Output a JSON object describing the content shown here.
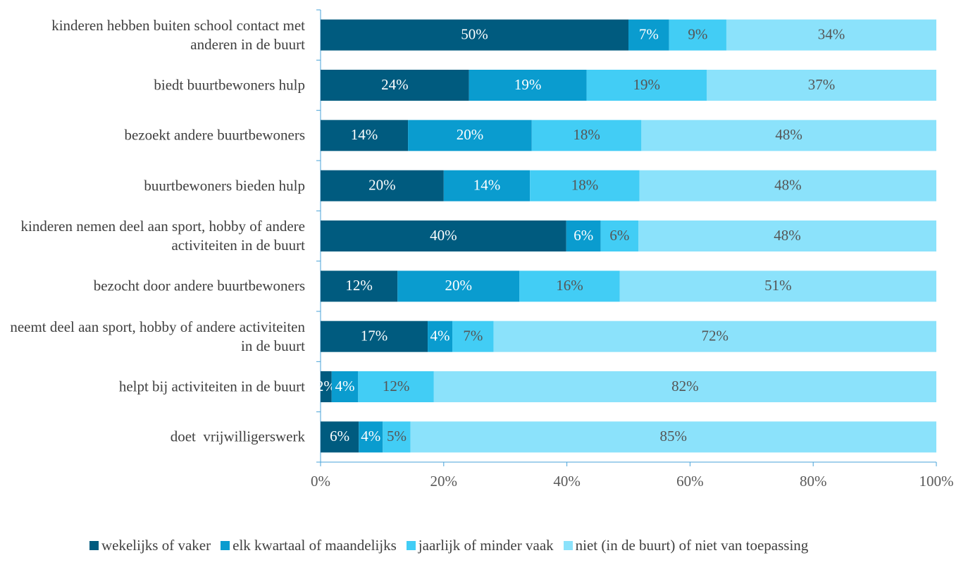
{
  "chart_data": {
    "type": "stacked_barh",
    "categories": [
      "kinderen hebben buiten school contact met anderen in de buurt",
      "biedt buurtbewoners hulp",
      "bezoekt andere buurtbewoners",
      "buurtbewoners bieden hulp",
      "kinderen nemen deel aan sport, hobby of andere activiteiten in de buurt",
      "bezocht door andere buurtbewoners",
      "neemt deel aan sport, hobby of andere activiteiten in de buurt",
      "helpt bij activiteiten in de buurt",
      "doet  vrijwilligerswerk"
    ],
    "series": [
      {
        "name": "wekelijks of vaker",
        "color": "#005b7f",
        "label_color": "#ffffff",
        "values": [
          50.0,
          24.1,
          14.2,
          20.0,
          39.9,
          12.5,
          17.4,
          1.8,
          6.2
        ],
        "value_labels": [
          "50%",
          "24%",
          "14%",
          "20%",
          "40%",
          "12%",
          "17%",
          "2%",
          "6%"
        ]
      },
      {
        "name": "elk kwartaal of maandelijks",
        "color": "#0a9ccf",
        "label_color": "#ffffff",
        "values": [
          6.6,
          19.1,
          20.1,
          14.0,
          5.6,
          19.8,
          4.0,
          4.3,
          3.9
        ],
        "value_labels": [
          "7%",
          "19%",
          "20%",
          "14%",
          "6%",
          "20%",
          "4%",
          "4%",
          "4%"
        ]
      },
      {
        "name": "jaarlijk of minder vaak",
        "color": "#42cdf5",
        "label_color": "#555555",
        "values": [
          9.3,
          19.5,
          17.8,
          17.8,
          6.1,
          16.3,
          6.7,
          12.3,
          4.5
        ],
        "value_labels": [
          "9%",
          "19%",
          "18%",
          "18%",
          "6%",
          "16%",
          "7%",
          "12%",
          "5%"
        ]
      },
      {
        "name": "niet (in de buurt) of niet van toepassing",
        "color": "#8be2fb",
        "label_color": "#555555",
        "values": [
          34.1,
          37.3,
          47.9,
          48.2,
          48.4,
          51.4,
          71.9,
          81.6,
          85.4
        ],
        "value_labels": [
          "34%",
          "37%",
          "48%",
          "48%",
          "48%",
          "51%",
          "72%",
          "82%",
          "85%"
        ]
      }
    ],
    "xlim": [
      0,
      100
    ],
    "xticks": [
      {
        "value": 0,
        "label": "0%"
      },
      {
        "value": 20,
        "label": "20%"
      },
      {
        "value": 40,
        "label": "40%"
      },
      {
        "value": 60,
        "label": "60%"
      },
      {
        "value": 80,
        "label": "80%"
      },
      {
        "value": 100,
        "label": "100%"
      }
    ],
    "legend": "bottom"
  }
}
